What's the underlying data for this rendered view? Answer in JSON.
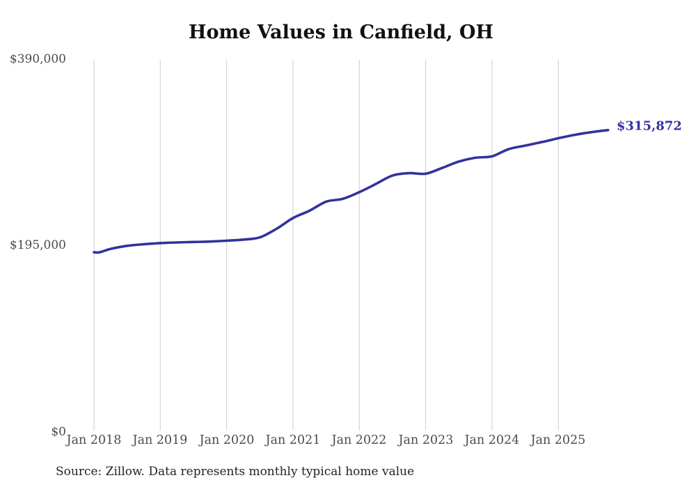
{
  "chart_data": {
    "type": "line",
    "title": "Home Values in Canfield, OH",
    "series_name": "Monthly typical home value",
    "x": [
      "2018-01",
      "2018-02",
      "2018-04",
      "2018-07",
      "2018-10",
      "2019-01",
      "2019-04",
      "2019-07",
      "2019-10",
      "2020-01",
      "2020-04",
      "2020-07",
      "2020-10",
      "2021-01",
      "2021-04",
      "2021-07",
      "2021-10",
      "2022-01",
      "2022-04",
      "2022-07",
      "2022-10",
      "2023-01",
      "2023-04",
      "2023-07",
      "2023-10",
      "2024-01",
      "2024-04",
      "2024-07",
      "2024-10",
      "2025-01",
      "2025-04",
      "2025-07",
      "2025-10"
    ],
    "values": [
      188100,
      187900,
      191500,
      194800,
      196400,
      197600,
      198300,
      198800,
      199200,
      200100,
      201300,
      203600,
      212500,
      223800,
      231500,
      241000,
      243900,
      250900,
      259500,
      268300,
      270800,
      270200,
      276300,
      282900,
      286900,
      288400,
      295900,
      299600,
      303300,
      307300,
      310900,
      313700,
      315872
    ],
    "x_tick_labels": [
      "Jan 2018",
      "Jan 2019",
      "Jan 2020",
      "Jan 2021",
      "Jan 2022",
      "Jan 2023",
      "Jan 2024",
      "Jan 2025"
    ],
    "y_ticks": [
      {
        "label": "$390,000",
        "value": 390000
      },
      {
        "label": "$195,000",
        "value": 195000
      },
      {
        "label": "$0",
        "value": 0
      }
    ],
    "ylim": [
      0,
      390000
    ],
    "grid": "vertical",
    "legend": "none",
    "line_color": "#32329c",
    "grid_color": "#cccccc",
    "end_label": "$315,872",
    "last_value": 315872,
    "source": "Source: Zillow. Data represents monthly typical home value"
  }
}
